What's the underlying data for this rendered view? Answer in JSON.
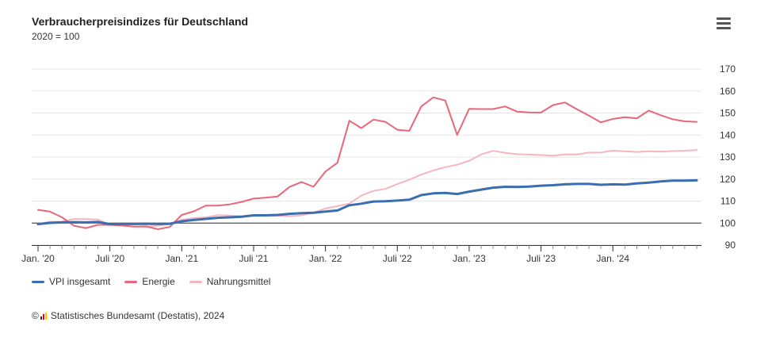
{
  "chart_data": {
    "type": "line",
    "title": "Verbraucherpreisindizes für Deutschland",
    "subtitle": "2020 = 100",
    "xlabel": "",
    "ylabel": "",
    "ylim": [
      90,
      170
    ],
    "y_ticks": [
      90,
      100,
      110,
      120,
      130,
      140,
      150,
      160,
      170
    ],
    "baseline": 100,
    "x_tick_labels": [
      "Jan. '20",
      "Juli '20",
      "Jan. '21",
      "Juli '21",
      "Jan. '22",
      "Juli '22",
      "Jan. '23",
      "Juli '23",
      "Jan. '24"
    ],
    "x_tick_months": [
      0,
      6,
      12,
      18,
      24,
      30,
      36,
      42,
      48
    ],
    "months": 56,
    "series": [
      {
        "name": "VPI insgesamt",
        "color": "#3a6eb0",
        "values": [
          99.5,
          100.1,
          100.3,
          100.4,
          100.3,
          100.5,
          99.5,
          99.6,
          99.6,
          99.7,
          99.6,
          99.7,
          100.8,
          101.4,
          101.9,
          102.4,
          102.6,
          102.9,
          103.5,
          103.5,
          103.7,
          104.2,
          104.5,
          104.7,
          105.2,
          105.7,
          108.1,
          108.8,
          109.8,
          109.9,
          110.2,
          110.6,
          112.7,
          113.5,
          113.7,
          113.2,
          114.3,
          115.2,
          116.1,
          116.5,
          116.4,
          116.6,
          117.0,
          117.2,
          117.6,
          117.8,
          117.8,
          117.4,
          117.6,
          117.5,
          118.0,
          118.4,
          118.9,
          119.3,
          119.3,
          119.4
        ]
      },
      {
        "name": "Energie",
        "color": "#e8677a",
        "values": [
          106.0,
          105.2,
          102.6,
          98.8,
          97.7,
          99.2,
          99.2,
          98.9,
          98.4,
          98.5,
          97.2,
          98.2,
          103.7,
          105.3,
          107.9,
          107.9,
          108.5,
          109.6,
          111.1,
          111.5,
          112.1,
          116.4,
          118.7,
          116.5,
          123.4,
          127.4,
          146.5,
          143.1,
          147.0,
          146.0,
          142.4,
          141.9,
          153.0,
          157.1,
          155.7,
          140.1,
          151.9,
          151.8,
          151.8,
          153.0,
          150.6,
          150.3,
          150.2,
          153.6,
          154.8,
          151.7,
          148.8,
          145.8,
          147.3,
          148.1,
          147.6,
          151.1,
          149.0,
          147.2,
          146.2,
          146.0
        ]
      },
      {
        "name": "Nahrungsmittel",
        "color": "#f6b6c0",
        "values": [
          99.6,
          100.6,
          100.6,
          101.9,
          101.8,
          101.6,
          99.3,
          98.8,
          98.4,
          98.3,
          98.8,
          99.6,
          101.5,
          102.3,
          102.6,
          103.6,
          103.4,
          103.1,
          103.2,
          103.3,
          103.3,
          103.1,
          103.5,
          104.7,
          106.6,
          107.7,
          108.9,
          112.5,
          114.6,
          115.5,
          117.7,
          119.7,
          122.0,
          123.9,
          125.4,
          126.5,
          128.3,
          131.2,
          132.8,
          131.9,
          131.3,
          131.1,
          130.9,
          130.6,
          131.2,
          131.2,
          132.0,
          132.1,
          132.9,
          132.6,
          132.3,
          132.6,
          132.4,
          132.7,
          132.9,
          133.2
        ]
      }
    ]
  },
  "credit": {
    "copyright": "©",
    "text": "Statistisches Bundesamt (Destatis), 2024"
  }
}
